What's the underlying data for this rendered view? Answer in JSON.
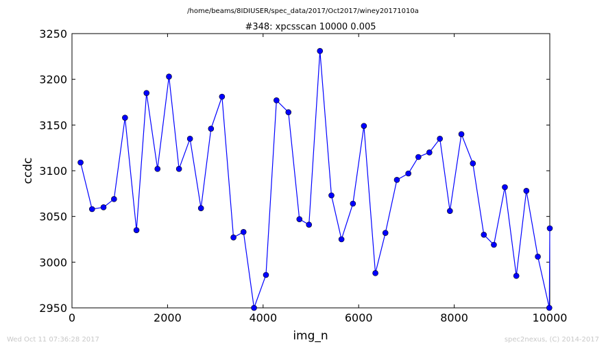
{
  "header": {
    "path": "/home/beams/8IDIUSER/spec_data/2017/Oct2017/winey20171010a",
    "title": "#348: xpcsscan 10000 0.005"
  },
  "footer": {
    "timestamp": "Wed Oct 11 07:36:28 2017",
    "credit": "spec2nexus, (C) 2014-2017"
  },
  "colors": {
    "series": "#0000ff",
    "marker_edge": "#000000",
    "axes": "#000000"
  },
  "chart_data": {
    "type": "line",
    "xlabel": "img_n",
    "ylabel": "ccdc",
    "xlim": [
      0,
      10000
    ],
    "ylim": [
      2950,
      3250
    ],
    "xticks": [
      0,
      2000,
      4000,
      6000,
      8000,
      10000
    ],
    "yticks": [
      2950,
      3000,
      3050,
      3100,
      3150,
      3200,
      3250
    ],
    "xtick_labels": [
      "0",
      "2000",
      "4000",
      "6000",
      "8000",
      "10000"
    ],
    "ytick_labels": [
      "2950",
      "3000",
      "3050",
      "3100",
      "3150",
      "3200",
      "3250"
    ],
    "grid": false,
    "series": [
      {
        "x": [
          180,
          420,
          660,
          880,
          1110,
          1350,
          1560,
          1790,
          2030,
          2240,
          2470,
          2700,
          2910,
          3140,
          3380,
          3590,
          3810,
          4060,
          4280,
          4530,
          4760,
          4960,
          5190,
          5430,
          5640,
          5880,
          6110,
          6350,
          6560,
          6800,
          7040,
          7250,
          7480,
          7700,
          7910,
          8150,
          8390,
          8620,
          8830,
          9060,
          9300,
          9510,
          9750,
          9990,
          10000
        ],
        "y": [
          3109,
          3058,
          3060,
          3069,
          3158,
          3035,
          3185,
          3102,
          3203,
          3102,
          3135,
          3059,
          3146,
          3181,
          3027,
          3033,
          2950,
          2986,
          3177,
          3164,
          3047,
          3041,
          3231,
          3073,
          3025,
          3064,
          3149,
          2988,
          3032,
          3090,
          3097,
          3115,
          3120,
          3135,
          3056,
          3140,
          3108,
          3030,
          3019,
          3082,
          2985,
          3078,
          3006,
          2950,
          3037
        ]
      }
    ]
  }
}
